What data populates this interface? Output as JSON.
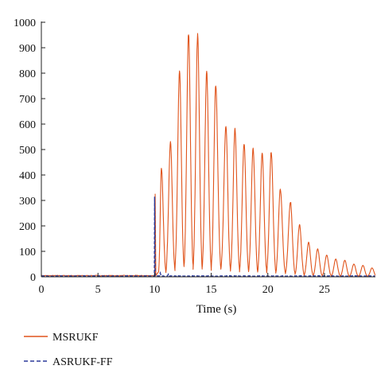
{
  "chart_data": {
    "type": "line",
    "title": "",
    "xlabel": "Time (s)",
    "ylabel": "",
    "xlim": [
      0,
      29.5
    ],
    "ylim": [
      0,
      1000
    ],
    "xticks": [
      0,
      5,
      10,
      15,
      20,
      25
    ],
    "yticks": [
      0,
      100,
      200,
      300,
      400,
      500,
      600,
      700,
      800,
      900,
      1000
    ],
    "grid": false,
    "legend_position": "bottom-left",
    "series": [
      {
        "name": "MSRUKF",
        "color": "#e0541c",
        "style": "solid",
        "baseline": 3,
        "onset": 10.0,
        "spike": {
          "x": 10.05,
          "y": 325
        },
        "pulse_peaks": [
          [
            10.6,
            430
          ],
          [
            11.4,
            530
          ],
          [
            12.2,
            805
          ],
          [
            13.0,
            955
          ],
          [
            13.8,
            950
          ],
          [
            14.6,
            805
          ],
          [
            15.4,
            755
          ],
          [
            16.3,
            595
          ],
          [
            17.1,
            580
          ],
          [
            17.9,
            525
          ],
          [
            18.7,
            505
          ],
          [
            19.5,
            485
          ],
          [
            20.3,
            490
          ],
          [
            21.1,
            345
          ],
          [
            22.0,
            295
          ],
          [
            22.8,
            205
          ],
          [
            23.6,
            135
          ],
          [
            24.4,
            110
          ],
          [
            25.2,
            85
          ],
          [
            26.0,
            70
          ],
          [
            26.8,
            65
          ],
          [
            27.6,
            50
          ],
          [
            28.4,
            45
          ],
          [
            29.2,
            35
          ]
        ]
      },
      {
        "name": "ASRUKF-FF",
        "color": "#2b3a9a",
        "style": "dashed",
        "baseline": 2,
        "spike": {
          "x": 10.0,
          "y": 315
        },
        "blips": [
          [
            10.5,
            15
          ],
          [
            11.2,
            10
          ],
          [
            12.0,
            6
          ]
        ]
      }
    ]
  }
}
